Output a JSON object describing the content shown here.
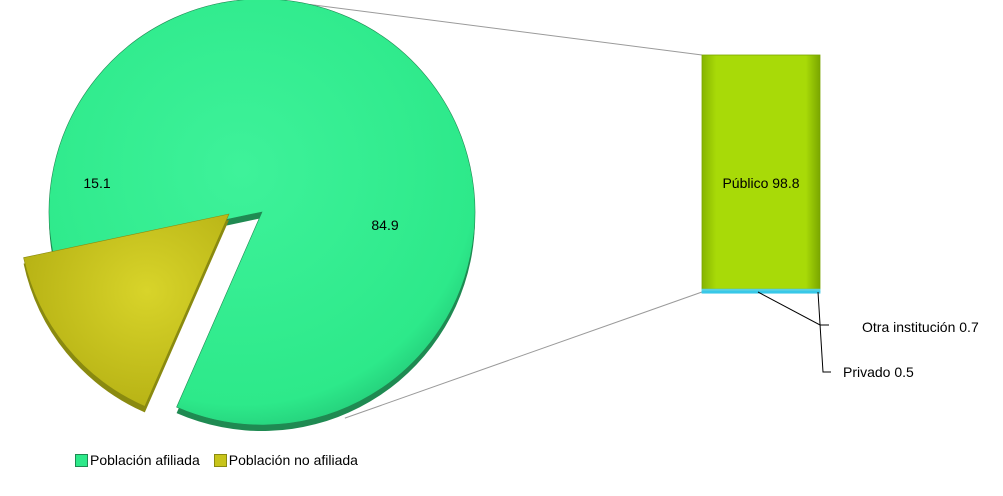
{
  "chart_data": {
    "type": "pie",
    "title": "",
    "pie": {
      "slices": [
        {
          "name": "Población afiliada",
          "value": 84.9,
          "label": "84.9",
          "color": "#2de98a",
          "side_color": "#1f8a52"
        },
        {
          "name": "Población no afiliada",
          "value": 15.1,
          "label": "15.1",
          "color": "#c8c41a",
          "side_color": "#8a8a10"
        }
      ]
    },
    "breakdown": {
      "type": "stacked-bar",
      "of_slice": "Población afiliada",
      "segments": [
        {
          "name": "Público",
          "value": 98.8,
          "label": "Público 98.8",
          "color": "#a6d80a"
        },
        {
          "name": "Otra institución",
          "value": 0.7,
          "label": "Otra institución 0.7",
          "color": "#5ad0e0"
        },
        {
          "name": "Privado",
          "value": 0.5,
          "label": "Privado 0.5",
          "color": "#38c8e8"
        }
      ]
    },
    "legend": {
      "placement": "bottom-left",
      "entries": [
        "Población afiliada",
        "Población no afiliada"
      ]
    }
  }
}
